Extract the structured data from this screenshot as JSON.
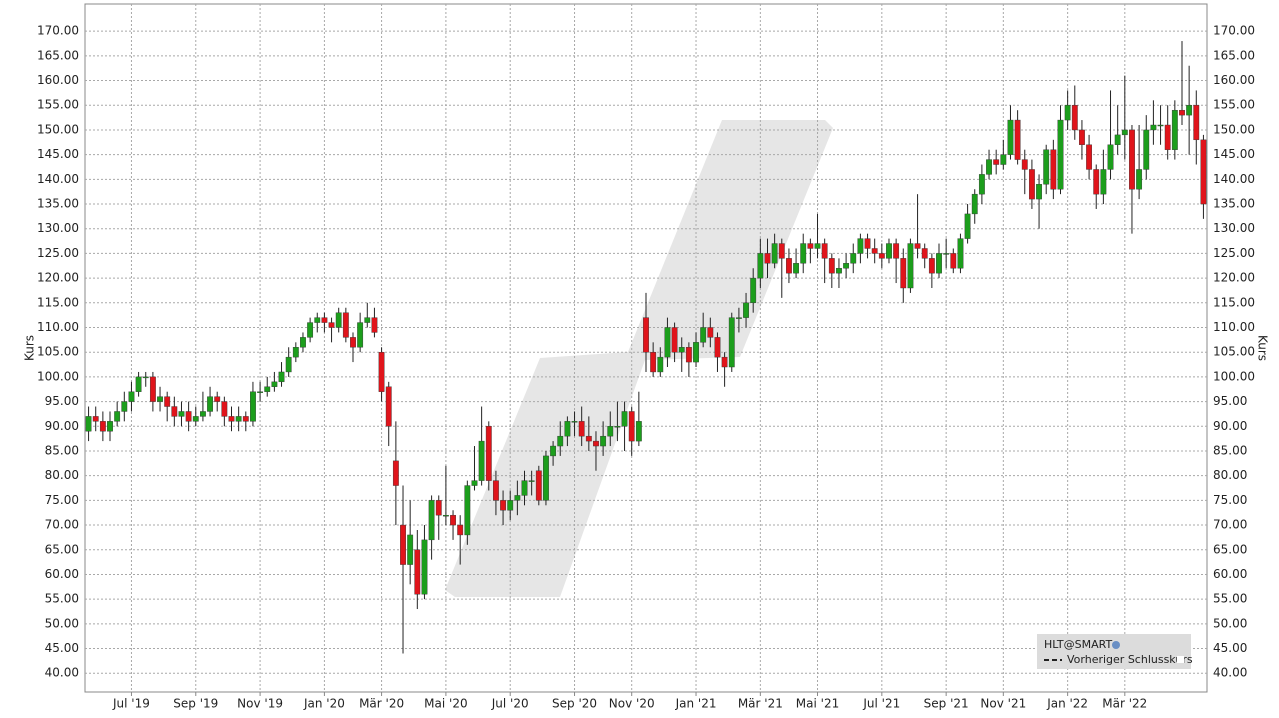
{
  "chart_data": {
    "type": "candlestick",
    "y_label": "Kurs",
    "legend": [
      "HLT@SMART",
      "Vorheriger Schlusskurs"
    ],
    "colors": {
      "up": "#1c9e1c",
      "down": "#e0141b"
    },
    "grid": true,
    "ylim": [
      36.2,
      175.5
    ],
    "yticks": [
      {
        "value": 40,
        "label": "40.00"
      },
      {
        "value": 45,
        "label": "45.00"
      },
      {
        "value": 50,
        "label": "50.00"
      },
      {
        "value": 55,
        "label": "55.00"
      },
      {
        "value": 60,
        "label": "60.00"
      },
      {
        "value": 65,
        "label": "65.00"
      },
      {
        "value": 70,
        "label": "70.00"
      },
      {
        "value": 75,
        "label": "75.00"
      },
      {
        "value": 80,
        "label": "80.00"
      },
      {
        "value": 85,
        "label": "85.00"
      },
      {
        "value": 90,
        "label": "90.00"
      },
      {
        "value": 95,
        "label": "95.00"
      },
      {
        "value": 100,
        "label": "100.00"
      },
      {
        "value": 105,
        "label": "105.00"
      },
      {
        "value": 110,
        "label": "110.00"
      },
      {
        "value": 115,
        "label": "115.00"
      },
      {
        "value": 120,
        "label": "120.00"
      },
      {
        "value": 125,
        "label": "125.00"
      },
      {
        "value": 130,
        "label": "130.00"
      },
      {
        "value": 135,
        "label": "135.00"
      },
      {
        "value": 140,
        "label": "140.00"
      },
      {
        "value": 145,
        "label": "145.00"
      },
      {
        "value": 150,
        "label": "150.00"
      },
      {
        "value": 155,
        "label": "155.00"
      },
      {
        "value": 160,
        "label": "160.00"
      },
      {
        "value": 165,
        "label": "165.00"
      },
      {
        "value": 170,
        "label": "170.00"
      }
    ],
    "categories": [
      null,
      null,
      null,
      null,
      null,
      null,
      "Jul '19",
      null,
      null,
      null,
      null,
      null,
      null,
      null,
      null,
      "Sep '19",
      null,
      null,
      null,
      null,
      null,
      null,
      null,
      null,
      "Nov '19",
      null,
      null,
      null,
      null,
      null,
      null,
      null,
      null,
      "Jan '20",
      null,
      null,
      null,
      null,
      null,
      null,
      null,
      "Mär '20",
      null,
      null,
      null,
      null,
      null,
      null,
      null,
      null,
      "Mai '20",
      null,
      null,
      null,
      null,
      null,
      null,
      null,
      null,
      "Jul '20",
      null,
      null,
      null,
      null,
      null,
      null,
      null,
      null,
      "Sep '20",
      null,
      null,
      null,
      null,
      null,
      null,
      null,
      "Nov '20",
      null,
      null,
      null,
      null,
      null,
      null,
      null,
      null,
      "Jan '21",
      null,
      null,
      null,
      null,
      null,
      null,
      null,
      null,
      "Mär '21",
      null,
      null,
      null,
      null,
      null,
      null,
      null,
      "Mai '21",
      null,
      null,
      null,
      null,
      null,
      null,
      null,
      null,
      "Jul '21",
      null,
      null,
      null,
      null,
      null,
      null,
      null,
      null,
      "Sep '21",
      null,
      null,
      null,
      null,
      null,
      null,
      null,
      "Nov '21",
      null,
      null,
      null,
      null,
      null,
      null,
      null,
      null,
      "Jan '22",
      null,
      null,
      null,
      null,
      null,
      null,
      null,
      "Mär '22",
      null,
      null,
      null,
      null,
      null,
      null,
      null,
      null,
      null,
      null,
      null
    ],
    "open": [
      89,
      92,
      91,
      89,
      91,
      93,
      95,
      97,
      100,
      100,
      95,
      96,
      94,
      92,
      93,
      91,
      92,
      93,
      96,
      95,
      92,
      91,
      92,
      91,
      97,
      97,
      98,
      99,
      101,
      104,
      106,
      108,
      111,
      112,
      111,
      110,
      113,
      108,
      106,
      111,
      112,
      105,
      98,
      83,
      70,
      62,
      65,
      56,
      67,
      75,
      72,
      72,
      70,
      68,
      78,
      79,
      90,
      79,
      75,
      73,
      75,
      76,
      79,
      81,
      75,
      84,
      86,
      88,
      91,
      91,
      88,
      87,
      86,
      88,
      90,
      90,
      93,
      87,
      112,
      105,
      101,
      104,
      110,
      105,
      106,
      103,
      107,
      110,
      108,
      104,
      102,
      112,
      112,
      115,
      120,
      125,
      123,
      127,
      124,
      121,
      123,
      127,
      126,
      127,
      124,
      121,
      122,
      123,
      125,
      128,
      126,
      125,
      124,
      127,
      124,
      118,
      127,
      126,
      124,
      121,
      125,
      125,
      122,
      128,
      133,
      137,
      141,
      144,
      143,
      145,
      152,
      144,
      142,
      136,
      139,
      146,
      138,
      152,
      155,
      150,
      147,
      142,
      137,
      142,
      147,
      149,
      150,
      138,
      142,
      150,
      151,
      151,
      146,
      154,
      153,
      155,
      148
    ],
    "high": [
      94,
      94,
      93,
      93,
      95,
      97,
      99,
      101,
      101,
      101,
      98,
      97,
      96,
      95,
      95,
      94,
      97,
      98,
      97,
      96,
      94,
      94,
      93,
      99,
      99,
      100,
      101,
      103,
      106,
      107,
      109,
      112,
      113,
      113,
      112,
      114,
      114,
      109,
      113,
      115,
      114,
      106,
      99,
      91,
      78,
      75,
      69,
      70,
      76,
      76,
      82,
      73,
      72,
      79,
      86,
      94,
      91,
      81,
      77,
      77,
      79,
      81,
      81,
      82,
      85,
      87,
      91,
      92,
      93,
      94,
      92,
      89,
      91,
      93,
      95,
      95,
      94,
      97,
      117,
      107,
      106,
      112,
      111,
      108,
      107,
      109,
      113,
      112,
      109,
      105,
      113,
      114,
      117,
      122,
      128,
      128,
      129,
      128,
      126,
      126,
      129,
      128,
      133,
      128,
      125,
      124,
      125,
      127,
      129,
      129,
      128,
      127,
      128,
      128,
      126,
      128,
      137,
      127,
      125,
      127,
      128,
      126,
      129,
      135,
      138,
      143,
      146,
      146,
      148,
      155,
      154,
      146,
      144,
      141,
      147,
      148,
      155,
      158,
      159,
      152,
      149,
      143,
      146,
      158,
      155,
      161,
      151,
      151,
      153,
      156,
      155,
      155,
      156,
      168,
      163,
      158,
      149
    ],
    "low": [
      87,
      89,
      87,
      87,
      90,
      91,
      93,
      96,
      98,
      93,
      93,
      91,
      90,
      90,
      89,
      90,
      91,
      92,
      93,
      90,
      89,
      89,
      89,
      90,
      95,
      96,
      97,
      98,
      100,
      103,
      105,
      107,
      109,
      109,
      107,
      109,
      107,
      103,
      105,
      110,
      108,
      95,
      86,
      70,
      44,
      58,
      53,
      55,
      63,
      67,
      70,
      67,
      62,
      66,
      77,
      78,
      77,
      72,
      70,
      71,
      72,
      74,
      76,
      74,
      74,
      82,
      84,
      86,
      88,
      86,
      85,
      81,
      84,
      86,
      87,
      85,
      84,
      86,
      101,
      100,
      100,
      102,
      103,
      101,
      100,
      102,
      106,
      106,
      101,
      98,
      101,
      109,
      110,
      113,
      118,
      120,
      122,
      116,
      119,
      120,
      121,
      123,
      124,
      119,
      118,
      118,
      120,
      121,
      123,
      124,
      123,
      122,
      123,
      119,
      115,
      117,
      124,
      122,
      118,
      120,
      122,
      121,
      121,
      127,
      131,
      135,
      140,
      141,
      142,
      144,
      143,
      137,
      134,
      130,
      137,
      136,
      137,
      150,
      148,
      144,
      140,
      134,
      135,
      140,
      145,
      144,
      129,
      136,
      140,
      147,
      147,
      144,
      144,
      151,
      145,
      143,
      132
    ],
    "close": [
      92,
      91,
      89,
      91,
      93,
      95,
      97,
      100,
      100,
      95,
      96,
      94,
      92,
      93,
      91,
      92,
      93,
      96,
      95,
      92,
      91,
      92,
      91,
      97,
      97,
      98,
      99,
      101,
      104,
      106,
      108,
      111,
      112,
      111,
      110,
      113,
      108,
      106,
      111,
      112,
      109,
      97,
      90,
      78,
      62,
      68,
      56,
      67,
      75,
      72,
      72,
      70,
      68,
      78,
      79,
      87,
      79,
      75,
      73,
      75,
      76,
      79,
      79,
      75,
      84,
      86,
      88,
      91,
      91,
      88,
      87,
      86,
      88,
      90,
      90,
      93,
      87,
      91,
      105,
      101,
      104,
      110,
      105,
      106,
      103,
      107,
      110,
      108,
      104,
      102,
      112,
      112,
      115,
      120,
      125,
      123,
      127,
      124,
      121,
      123,
      127,
      126,
      127,
      124,
      121,
      122,
      123,
      125,
      128,
      126,
      125,
      124,
      127,
      124,
      118,
      127,
      126,
      124,
      121,
      125,
      125,
      122,
      128,
      133,
      137,
      141,
      144,
      143,
      145,
      152,
      144,
      142,
      136,
      139,
      146,
      138,
      152,
      155,
      150,
      147,
      142,
      137,
      142,
      147,
      149,
      150,
      138,
      142,
      150,
      151,
      151,
      146,
      154,
      153,
      155,
      148,
      135
    ]
  }
}
